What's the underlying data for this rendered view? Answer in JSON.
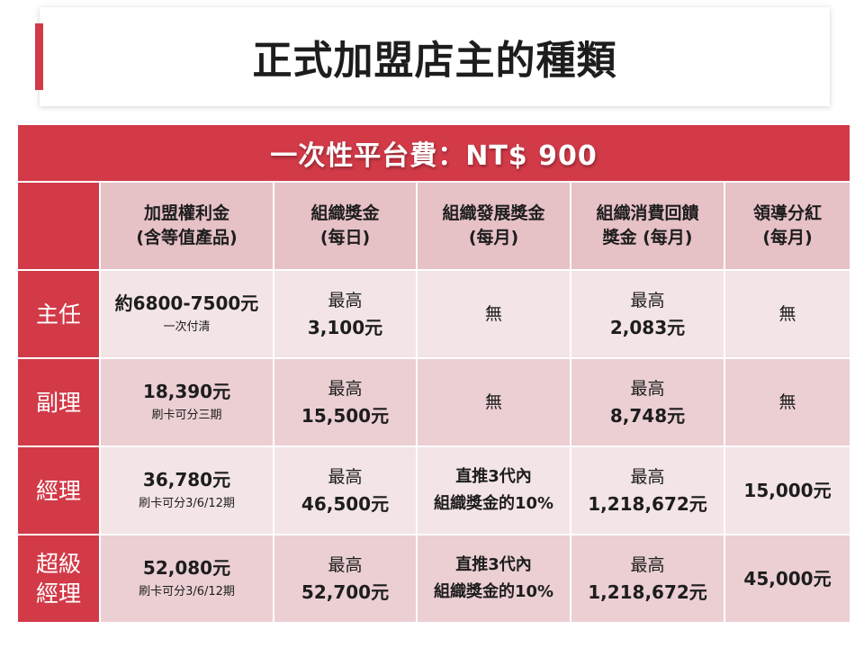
{
  "title": "正式加盟店主的種類",
  "banner": "一次性平台費：NT$ 900",
  "headers": [
    [
      "加盟權利金",
      "(含等值產品)"
    ],
    [
      "組織獎金",
      "(每日)"
    ],
    [
      "組織發展獎金",
      "(每月)"
    ],
    [
      "組織消費回饋",
      "獎金 (每月)"
    ],
    [
      "領導分紅",
      "(每月)"
    ]
  ],
  "rows": [
    {
      "rank": [
        "主任"
      ],
      "fee": {
        "main": "約6800-7500元",
        "sub": "一次付清"
      },
      "daily": {
        "label": "最高",
        "value": "3,100元"
      },
      "dev": {
        "text": "無"
      },
      "consume": {
        "label": "最高",
        "value": "2,083元"
      },
      "lead": {
        "text": "無"
      }
    },
    {
      "rank": [
        "副理"
      ],
      "fee": {
        "main": "18,390元",
        "sub": "刷卡可分三期"
      },
      "daily": {
        "label": "最高",
        "value": "15,500元"
      },
      "dev": {
        "text": "無"
      },
      "consume": {
        "label": "最高",
        "value": "8,748元"
      },
      "lead": {
        "text": "無"
      }
    },
    {
      "rank": [
        "經理"
      ],
      "fee": {
        "main": "36,780元",
        "sub": "刷卡可分3/6/12期"
      },
      "daily": {
        "label": "最高",
        "value": "46,500元"
      },
      "dev": {
        "line1": "直推3代內",
        "line2": "組織獎金的10%"
      },
      "consume": {
        "label": "最高",
        "value": "1,218,672元"
      },
      "lead": {
        "text": "15,000元"
      }
    },
    {
      "rank": [
        "超級",
        "經理"
      ],
      "fee": {
        "main": "52,080元",
        "sub": "刷卡可分3/6/12期"
      },
      "daily": {
        "label": "最高",
        "value": "52,700元"
      },
      "dev": {
        "line1": "直推3代內",
        "line2": "組織獎金的10%"
      },
      "consume": {
        "label": "最高",
        "value": "1,218,672元"
      },
      "lead": {
        "text": "45,000元"
      }
    }
  ],
  "colors": {
    "accent": "#d23a48",
    "header_bg": "#e6c1c6",
    "row_light": "#f3e4e6",
    "row_dark": "#ebcfd3"
  }
}
